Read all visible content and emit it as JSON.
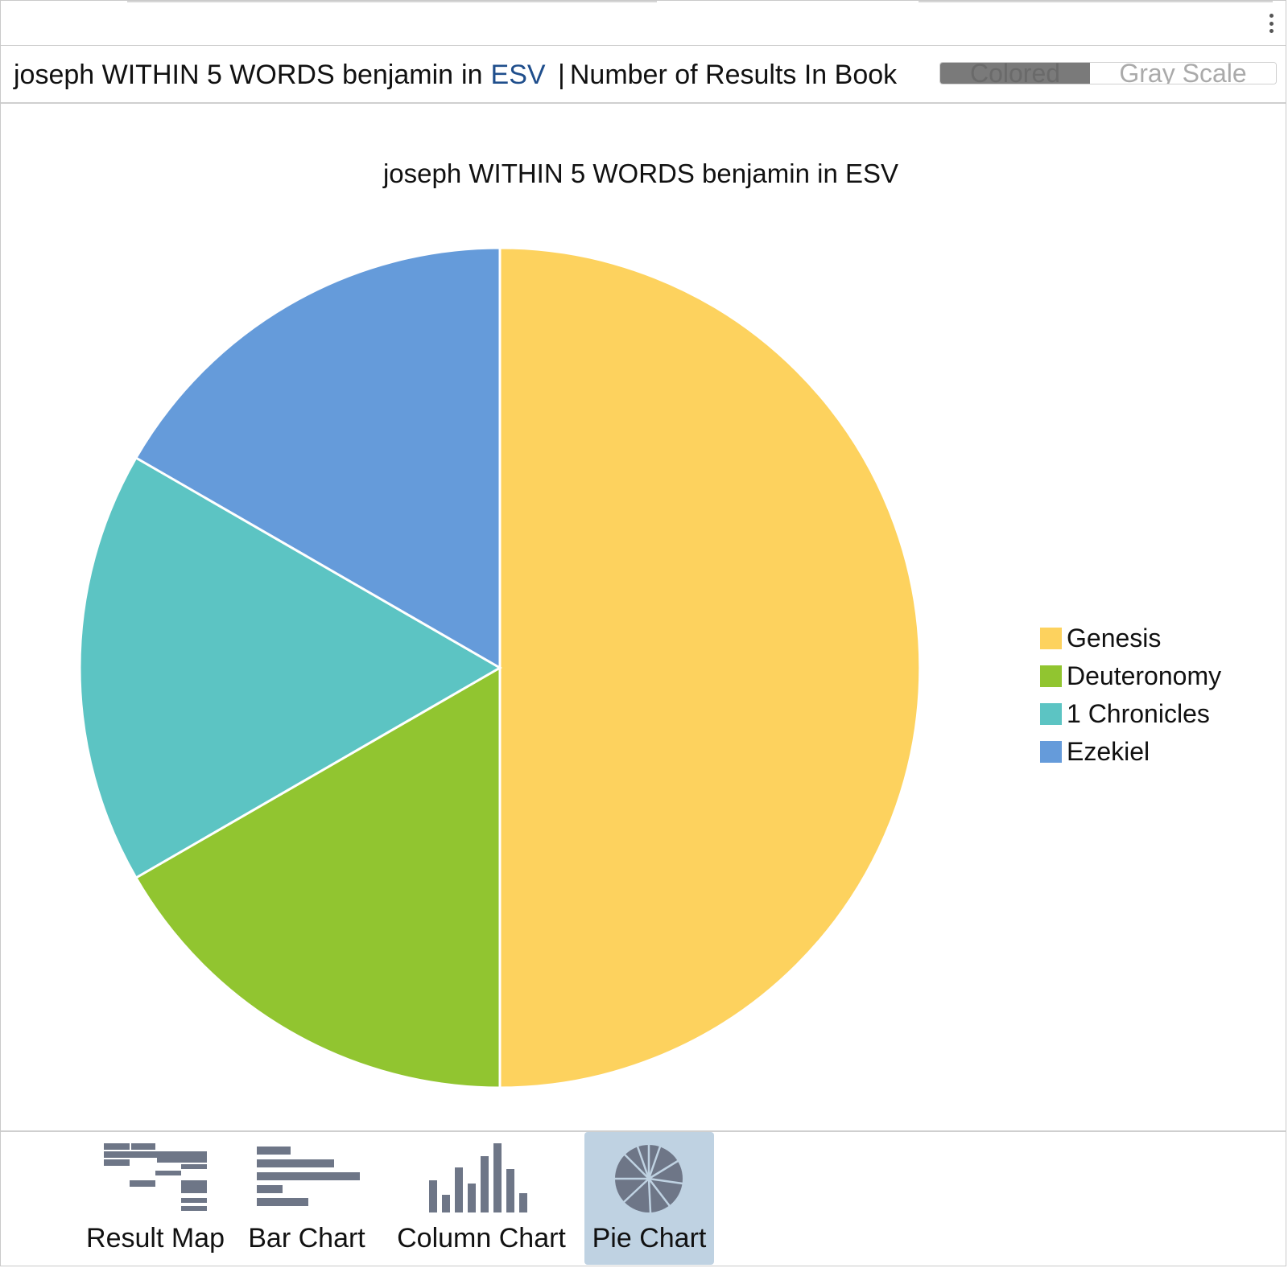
{
  "header": {
    "query": "joseph WITHIN 5 WORDS benjamin",
    "in_label": "in",
    "version": "ESV",
    "separator": "|",
    "metric": "Number of Results In Book"
  },
  "color_toggle": {
    "options": [
      "Colored",
      "Gray Scale"
    ],
    "selected": "Colored"
  },
  "chart_data": {
    "type": "pie",
    "title": "joseph WITHIN 5 WORDS benjamin in ESV",
    "categories": [
      "Genesis",
      "Deuteronomy",
      "1 Chronicles",
      "Ezekiel"
    ],
    "values": [
      3,
      1,
      1,
      1
    ],
    "colors": [
      "#FDD25E",
      "#91C530",
      "#5CC4C3",
      "#659BDA"
    ],
    "legend_position": "right"
  },
  "toolbar": {
    "items": [
      {
        "label": "Result Map",
        "icon": "result-map-icon",
        "active": false
      },
      {
        "label": "Bar Chart",
        "icon": "bar-chart-icon",
        "active": false
      },
      {
        "label": "Column Chart",
        "icon": "column-chart-icon",
        "active": false
      },
      {
        "label": "Pie Chart",
        "icon": "pie-chart-icon",
        "active": true
      }
    ]
  }
}
